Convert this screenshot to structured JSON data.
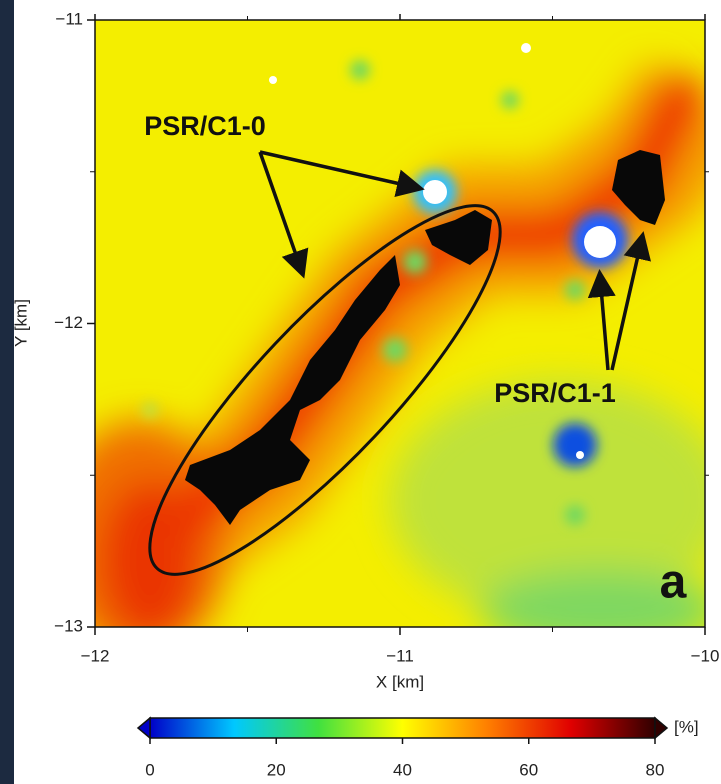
{
  "chart_data": {
    "type": "heatmap",
    "xlabel": "X [km]",
    "ylabel": "Y [km]",
    "xlim": [
      -12,
      -10
    ],
    "ylim": [
      -13,
      -11
    ],
    "xticks": [
      {
        "value": -12,
        "label": "−12"
      },
      {
        "value": -11,
        "label": "−11"
      },
      {
        "value": -10,
        "label": "−10"
      }
    ],
    "yticks": [
      {
        "value": -13,
        "label": "−13"
      },
      {
        "value": -12,
        "label": "−12"
      },
      {
        "value": -11,
        "label": "−11"
      }
    ],
    "xminor": [
      -11.5,
      -10.5
    ],
    "yminor": [
      -12.5,
      -11.5
    ],
    "annotations": [
      "PSR/C1-0",
      "PSR/C1-1"
    ],
    "panel_label": "a",
    "colorbar": {
      "label": "[%]",
      "lim": [
        0,
        80
      ],
      "ticks": [
        0,
        20,
        40,
        60,
        80
      ],
      "colors": [
        "#0000c8",
        "#00c8ff",
        "#40e040",
        "#ffff00",
        "#ff8000",
        "#e00000",
        "#300000"
      ]
    }
  }
}
